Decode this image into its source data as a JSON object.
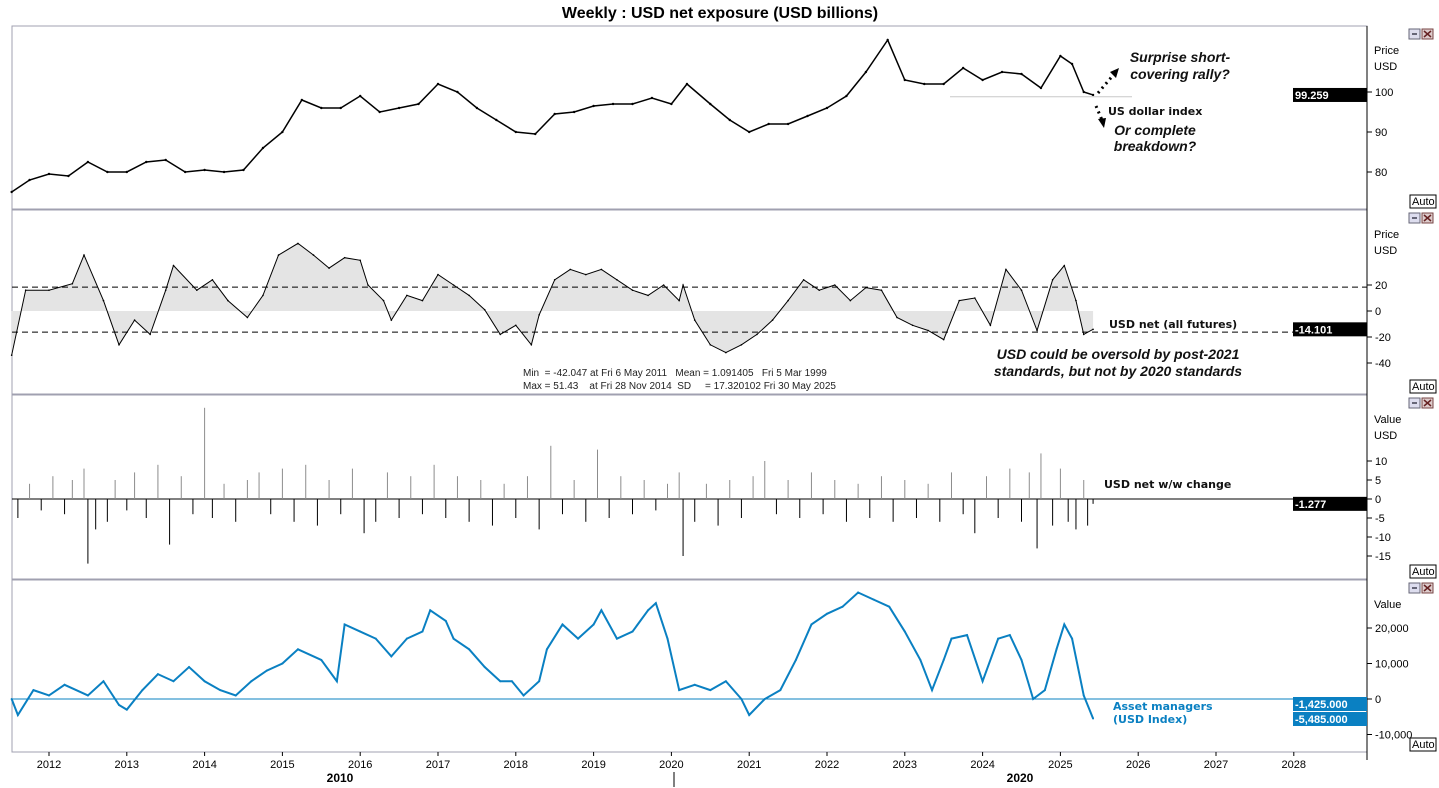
{
  "title": "Weekly : USD net exposure (USD billions)",
  "colors": {
    "accent": "#0a80c2",
    "line": "#000000",
    "fill": "#d8d8d8",
    "pos_bar": "#8c8c8c",
    "neg_bar": "#000000",
    "grid": "#a0a0b0"
  },
  "x_axis": {
    "tick_labels": [
      "2012",
      "2013",
      "2014",
      "2015",
      "2016",
      "2017",
      "2018",
      "2019",
      "2020",
      "2021",
      "2022",
      "2023",
      "2024",
      "2025",
      "2026",
      "2027",
      "2028"
    ],
    "decade_labels": [
      "2010",
      "2020"
    ]
  },
  "panel_controls": {
    "auto_label": "Auto",
    "restore_icon": "restore-icon",
    "close_icon": "close-icon"
  },
  "chart_data": [
    {
      "type": "line",
      "name": "US dollar index",
      "axis_labels": [
        "Price",
        "USD"
      ],
      "ticks": [
        "80",
        "90",
        "100"
      ],
      "last_value": "99.259",
      "ylim": [
        73,
        118
      ],
      "support_level": 98.8,
      "annotations": {
        "up": "Surprise short-covering rally?",
        "up_line1": "Surprise short-",
        "up_line2": "covering rally?",
        "down_line1": "Or complete",
        "down_line2": "breakdown?"
      },
      "points": [
        [
          2011.52,
          75
        ],
        [
          2011.75,
          78
        ],
        [
          2012.0,
          79.5
        ],
        [
          2012.25,
          79
        ],
        [
          2012.5,
          82.5
        ],
        [
          2012.75,
          80
        ],
        [
          2013.0,
          80
        ],
        [
          2013.25,
          82.5
        ],
        [
          2013.5,
          83
        ],
        [
          2013.75,
          80
        ],
        [
          2014.0,
          80.5
        ],
        [
          2014.25,
          80
        ],
        [
          2014.5,
          80.5
        ],
        [
          2014.75,
          86
        ],
        [
          2015.0,
          90
        ],
        [
          2015.25,
          98
        ],
        [
          2015.5,
          96
        ],
        [
          2015.75,
          96
        ],
        [
          2016.0,
          99
        ],
        [
          2016.25,
          95
        ],
        [
          2016.5,
          96
        ],
        [
          2016.75,
          97
        ],
        [
          2017.0,
          102
        ],
        [
          2017.25,
          100
        ],
        [
          2017.5,
          96
        ],
        [
          2017.75,
          93
        ],
        [
          2018.0,
          90
        ],
        [
          2018.25,
          89.5
        ],
        [
          2018.5,
          94.5
        ],
        [
          2018.75,
          95
        ],
        [
          2019.0,
          96.5
        ],
        [
          2019.25,
          97
        ],
        [
          2019.5,
          97
        ],
        [
          2019.75,
          98.5
        ],
        [
          2020.0,
          97
        ],
        [
          2020.2,
          102
        ],
        [
          2020.5,
          97
        ],
        [
          2020.75,
          93
        ],
        [
          2021.0,
          90
        ],
        [
          2021.25,
          92
        ],
        [
          2021.5,
          92
        ],
        [
          2021.75,
          94
        ],
        [
          2022.0,
          96
        ],
        [
          2022.25,
          99
        ],
        [
          2022.5,
          105
        ],
        [
          2022.78,
          113
        ],
        [
          2023.0,
          103
        ],
        [
          2023.25,
          102
        ],
        [
          2023.5,
          102
        ],
        [
          2023.75,
          106
        ],
        [
          2024.0,
          103
        ],
        [
          2024.25,
          105
        ],
        [
          2024.5,
          104.5
        ],
        [
          2024.75,
          101
        ],
        [
          2025.0,
          109
        ],
        [
          2025.15,
          107
        ],
        [
          2025.3,
          100
        ],
        [
          2025.42,
          99.26
        ]
      ]
    },
    {
      "type": "area",
      "name": "USD net (all futures)",
      "axis_labels": [
        "Price",
        "USD"
      ],
      "ticks": [
        "-40",
        "-20",
        "0",
        "20"
      ],
      "last_value": "-14.101",
      "ylim": [
        -48,
        60
      ],
      "bands": [
        18.41,
        -16.23
      ],
      "stats": {
        "line1": "Min  = -42.047 at Fri 6 May 2011   Mean = 1.091405   Fri 5 Mar 1999",
        "line2": "Max = 51.43    at Fri 28 Nov 2014  SD     = 17.320102 Fri 30 May 2025"
      },
      "annotation_line1": "USD could be oversold by post-2021",
      "annotation_line2": "standards, but not by 2020 standards",
      "points": [
        [
          2011.52,
          -34
        ],
        [
          2011.7,
          16
        ],
        [
          2012.0,
          16
        ],
        [
          2012.3,
          21
        ],
        [
          2012.45,
          43
        ],
        [
          2012.7,
          8
        ],
        [
          2012.9,
          -26
        ],
        [
          2013.1,
          -7
        ],
        [
          2013.3,
          -18
        ],
        [
          2013.5,
          16
        ],
        [
          2013.6,
          35
        ],
        [
          2013.9,
          16
        ],
        [
          2014.1,
          24
        ],
        [
          2014.3,
          8
        ],
        [
          2014.55,
          -5
        ],
        [
          2014.75,
          12
        ],
        [
          2014.95,
          43
        ],
        [
          2015.2,
          52
        ],
        [
          2015.4,
          43
        ],
        [
          2015.6,
          33
        ],
        [
          2015.8,
          41
        ],
        [
          2016.0,
          39
        ],
        [
          2016.1,
          20
        ],
        [
          2016.3,
          8
        ],
        [
          2016.4,
          -7
        ],
        [
          2016.6,
          12
        ],
        [
          2016.8,
          8
        ],
        [
          2017.0,
          28
        ],
        [
          2017.2,
          20
        ],
        [
          2017.4,
          12
        ],
        [
          2017.6,
          1
        ],
        [
          2017.8,
          -18
        ],
        [
          2018.0,
          -11
        ],
        [
          2018.2,
          -26
        ],
        [
          2018.3,
          -3
        ],
        [
          2018.5,
          24
        ],
        [
          2018.7,
          32
        ],
        [
          2018.9,
          28
        ],
        [
          2019.1,
          32
        ],
        [
          2019.3,
          24
        ],
        [
          2019.5,
          16
        ],
        [
          2019.7,
          12
        ],
        [
          2019.9,
          20
        ],
        [
          2020.1,
          8
        ],
        [
          2020.15,
          20
        ],
        [
          2020.3,
          -7
        ],
        [
          2020.5,
          -26
        ],
        [
          2020.7,
          -32
        ],
        [
          2020.9,
          -26
        ],
        [
          2021.1,
          -18
        ],
        [
          2021.3,
          -7
        ],
        [
          2021.5,
          8
        ],
        [
          2021.7,
          24
        ],
        [
          2021.9,
          16
        ],
        [
          2022.1,
          20
        ],
        [
          2022.3,
          8
        ],
        [
          2022.5,
          18
        ],
        [
          2022.7,
          16
        ],
        [
          2022.9,
          -5
        ],
        [
          2023.1,
          -11
        ],
        [
          2023.3,
          -15
        ],
        [
          2023.5,
          -22
        ],
        [
          2023.7,
          8
        ],
        [
          2023.9,
          10
        ],
        [
          2024.1,
          -11
        ],
        [
          2024.3,
          32
        ],
        [
          2024.5,
          16
        ],
        [
          2024.7,
          -15
        ],
        [
          2024.9,
          24
        ],
        [
          2025.05,
          35
        ],
        [
          2025.2,
          8
        ],
        [
          2025.3,
          -18
        ],
        [
          2025.42,
          -14.1
        ]
      ]
    },
    {
      "type": "bar",
      "name": "USD net w/w change",
      "axis_labels": [
        "Value",
        "USD"
      ],
      "ticks": [
        "-15",
        "-10",
        "-5",
        "0",
        "5",
        "10"
      ],
      "last_value": "-1.277",
      "ylim": [
        -20,
        25
      ],
      "points": [
        [
          2011.6,
          -5
        ],
        [
          2011.75,
          4
        ],
        [
          2011.9,
          -3
        ],
        [
          2012.05,
          6
        ],
        [
          2012.2,
          -4
        ],
        [
          2012.3,
          5
        ],
        [
          2012.45,
          8
        ],
        [
          2012.5,
          -17
        ],
        [
          2012.6,
          -8
        ],
        [
          2012.75,
          -6
        ],
        [
          2012.85,
          5
        ],
        [
          2013.0,
          -3
        ],
        [
          2013.1,
          7
        ],
        [
          2013.25,
          -5
        ],
        [
          2013.4,
          9
        ],
        [
          2013.55,
          -12
        ],
        [
          2013.7,
          6
        ],
        [
          2013.85,
          -4
        ],
        [
          2014.0,
          24
        ],
        [
          2014.1,
          -5
        ],
        [
          2014.25,
          4
        ],
        [
          2014.4,
          -6
        ],
        [
          2014.55,
          5
        ],
        [
          2014.7,
          7
        ],
        [
          2014.85,
          -4
        ],
        [
          2015.0,
          8
        ],
        [
          2015.15,
          -6
        ],
        [
          2015.3,
          9
        ],
        [
          2015.45,
          -7
        ],
        [
          2015.6,
          5
        ],
        [
          2015.75,
          -4
        ],
        [
          2015.9,
          8
        ],
        [
          2016.05,
          -9
        ],
        [
          2016.2,
          -6
        ],
        [
          2016.35,
          7
        ],
        [
          2016.5,
          -5
        ],
        [
          2016.65,
          6
        ],
        [
          2016.8,
          -4
        ],
        [
          2016.95,
          9
        ],
        [
          2017.1,
          -5
        ],
        [
          2017.25,
          6
        ],
        [
          2017.4,
          -6
        ],
        [
          2017.55,
          5
        ],
        [
          2017.7,
          -7
        ],
        [
          2017.85,
          4
        ],
        [
          2018.0,
          -5
        ],
        [
          2018.15,
          6
        ],
        [
          2018.3,
          -8
        ],
        [
          2018.45,
          14
        ],
        [
          2018.6,
          -4
        ],
        [
          2018.75,
          5
        ],
        [
          2018.9,
          -6
        ],
        [
          2019.05,
          13
        ],
        [
          2019.2,
          -5
        ],
        [
          2019.35,
          6
        ],
        [
          2019.5,
          -4
        ],
        [
          2019.65,
          5
        ],
        [
          2019.8,
          -3
        ],
        [
          2019.95,
          4
        ],
        [
          2020.1,
          7
        ],
        [
          2020.15,
          -15
        ],
        [
          2020.3,
          -6
        ],
        [
          2020.45,
          4
        ],
        [
          2020.6,
          -7
        ],
        [
          2020.75,
          5
        ],
        [
          2020.9,
          -5
        ],
        [
          2021.05,
          6
        ],
        [
          2021.2,
          10
        ],
        [
          2021.35,
          -4
        ],
        [
          2021.5,
          5
        ],
        [
          2021.65,
          -5
        ],
        [
          2021.8,
          7
        ],
        [
          2021.95,
          -4
        ],
        [
          2022.1,
          5
        ],
        [
          2022.25,
          -6
        ],
        [
          2022.4,
          4
        ],
        [
          2022.55,
          -5
        ],
        [
          2022.7,
          6
        ],
        [
          2022.85,
          -6
        ],
        [
          2023.0,
          5
        ],
        [
          2023.15,
          -5
        ],
        [
          2023.3,
          4
        ],
        [
          2023.45,
          -6
        ],
        [
          2023.6,
          7
        ],
        [
          2023.75,
          -4
        ],
        [
          2023.9,
          -9
        ],
        [
          2024.05,
          6
        ],
        [
          2024.2,
          -5
        ],
        [
          2024.35,
          8
        ],
        [
          2024.5,
          -6
        ],
        [
          2024.6,
          7
        ],
        [
          2024.7,
          -13
        ],
        [
          2024.75,
          12
        ],
        [
          2024.9,
          -7
        ],
        [
          2025.0,
          8
        ],
        [
          2025.1,
          -6
        ],
        [
          2025.2,
          -8
        ],
        [
          2025.3,
          5
        ],
        [
          2025.35,
          -7
        ],
        [
          2025.42,
          -1.277
        ]
      ]
    },
    {
      "type": "line",
      "name_line1": "Asset managers",
      "name_line2": "(USD Index)",
      "axis_labels": [
        "Value"
      ],
      "ticks": [
        "-10,000",
        "0",
        "10,000",
        "20,000"
      ],
      "last_values": [
        "-1,425.000",
        "-5,485.000"
      ],
      "ylim": [
        -15000,
        30000
      ],
      "points": [
        [
          2011.52,
          0
        ],
        [
          2011.6,
          -4500
        ],
        [
          2011.8,
          2500
        ],
        [
          2012.0,
          1000
        ],
        [
          2012.2,
          4000
        ],
        [
          2012.5,
          1000
        ],
        [
          2012.7,
          5000
        ],
        [
          2012.9,
          -1700
        ],
        [
          2013.0,
          -3000
        ],
        [
          2013.2,
          2500
        ],
        [
          2013.4,
          7000
        ],
        [
          2013.6,
          5000
        ],
        [
          2013.8,
          9000
        ],
        [
          2014.0,
          5000
        ],
        [
          2014.2,
          2500
        ],
        [
          2014.4,
          1000
        ],
        [
          2014.6,
          5000
        ],
        [
          2014.8,
          8000
        ],
        [
          2015.0,
          10000
        ],
        [
          2015.2,
          14000
        ],
        [
          2015.5,
          11000
        ],
        [
          2015.7,
          5000
        ],
        [
          2015.8,
          21000
        ],
        [
          2016.0,
          19000
        ],
        [
          2016.2,
          17000
        ],
        [
          2016.4,
          12000
        ],
        [
          2016.6,
          17000
        ],
        [
          2016.8,
          19000
        ],
        [
          2016.9,
          25000
        ],
        [
          2017.1,
          22000
        ],
        [
          2017.2,
          17000
        ],
        [
          2017.4,
          14000
        ],
        [
          2017.6,
          9000
        ],
        [
          2017.8,
          5000
        ],
        [
          2017.95,
          5000
        ],
        [
          2018.1,
          1000
        ],
        [
          2018.3,
          5000
        ],
        [
          2018.4,
          14000
        ],
        [
          2018.6,
          21000
        ],
        [
          2018.8,
          17000
        ],
        [
          2019.0,
          21000
        ],
        [
          2019.1,
          25000
        ],
        [
          2019.3,
          17000
        ],
        [
          2019.5,
          19000
        ],
        [
          2019.7,
          25000
        ],
        [
          2019.8,
          27000
        ],
        [
          2019.95,
          17000
        ],
        [
          2020.1,
          2500
        ],
        [
          2020.3,
          4000
        ],
        [
          2020.5,
          2500
        ],
        [
          2020.7,
          5000
        ],
        [
          2020.9,
          0
        ],
        [
          2021.0,
          -4500
        ],
        [
          2021.2,
          0
        ],
        [
          2021.4,
          2500
        ],
        [
          2021.6,
          11000
        ],
        [
          2021.8,
          21000
        ],
        [
          2022.0,
          24000
        ],
        [
          2022.2,
          26000
        ],
        [
          2022.4,
          30000
        ],
        [
          2022.6,
          28000
        ],
        [
          2022.8,
          26000
        ],
        [
          2023.0,
          19000
        ],
        [
          2023.2,
          11000
        ],
        [
          2023.35,
          2500
        ],
        [
          2023.5,
          11000
        ],
        [
          2023.6,
          17000
        ],
        [
          2023.8,
          18000
        ],
        [
          2024.0,
          5000
        ],
        [
          2024.2,
          17000
        ],
        [
          2024.35,
          18000
        ],
        [
          2024.5,
          11000
        ],
        [
          2024.65,
          0
        ],
        [
          2024.8,
          2500
        ],
        [
          2024.95,
          14000
        ],
        [
          2025.05,
          21000
        ],
        [
          2025.15,
          17000
        ],
        [
          2025.3,
          1000
        ],
        [
          2025.42,
          -5485
        ]
      ]
    }
  ]
}
